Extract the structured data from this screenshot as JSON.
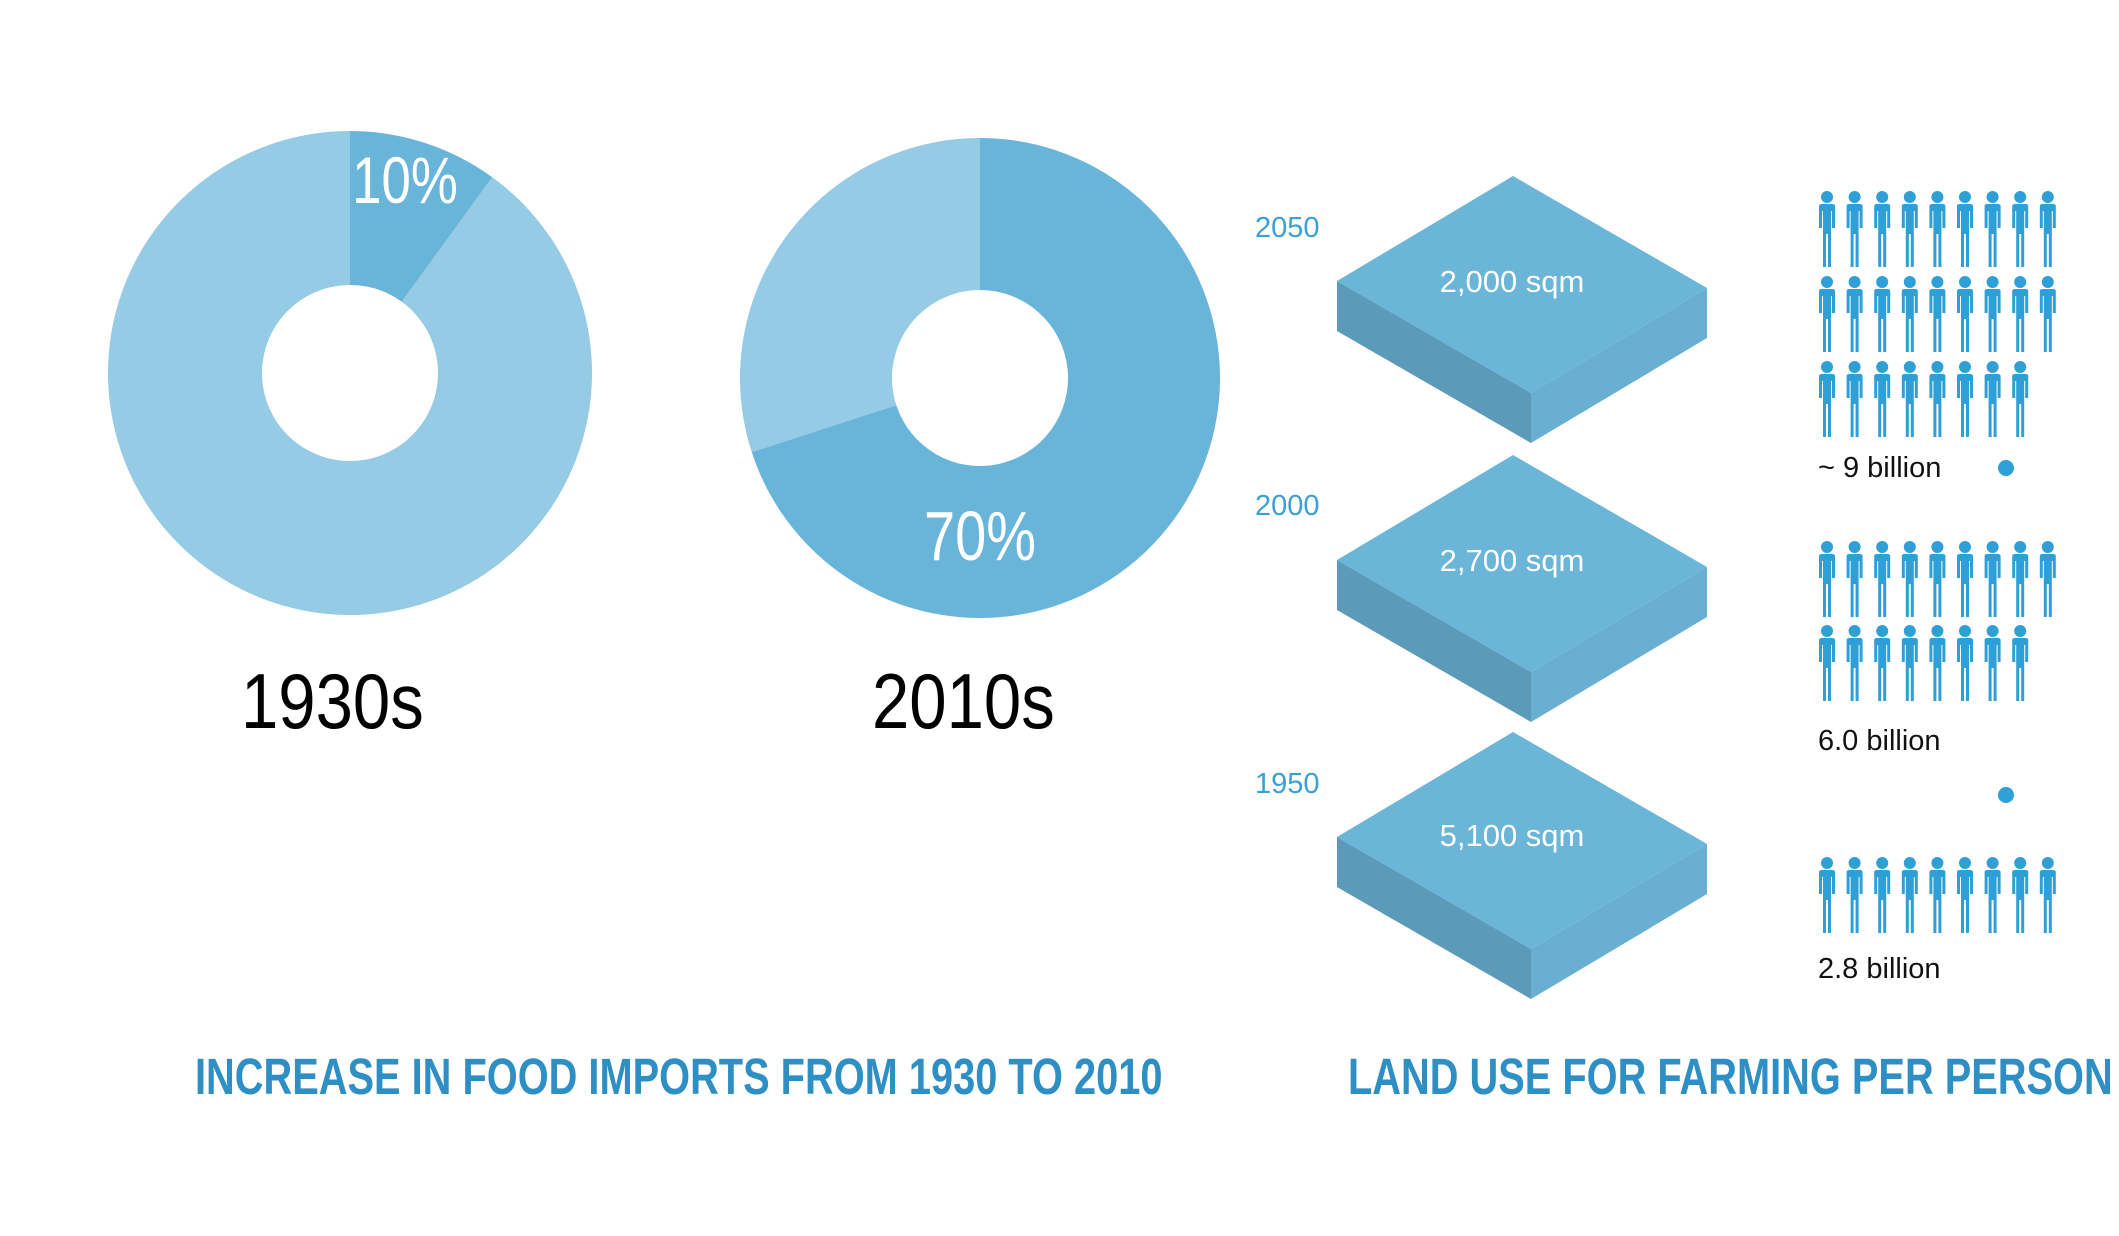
{
  "chart_data": [
    {
      "type": "pie",
      "variant": "donut",
      "title": "INCREASE IN FOOD IMPORTS FROM 1930 TO 2010",
      "charts": [
        {
          "label": "1930s",
          "value_percent": 10,
          "value_label": "10%"
        },
        {
          "label": "2010s",
          "value_percent": 70,
          "value_label": "70%"
        }
      ]
    },
    {
      "type": "bar",
      "variant": "isometric pictograph",
      "title": "LAND USE FOR FARMING PER PERSON",
      "categories": [
        "2050",
        "2000",
        "1950"
      ],
      "values": [
        2000,
        2700,
        5100
      ],
      "value_labels": [
        "2,000 sqm",
        "2,700 sqm",
        "5,100 sqm"
      ],
      "unit": "sqm",
      "population": [
        {
          "year": "2050",
          "label": "~ 9 billion",
          "value_billion": 9
        },
        {
          "year": "2000",
          "label": "6.0 billion",
          "value_billion": 6.0
        },
        {
          "year": "1950",
          "label": "2.8 billion",
          "value_billion": 2.8
        }
      ]
    }
  ],
  "colors": {
    "slice_dark": "#69b5da",
    "slice_light": "#95cbe4",
    "slab_top": "#6ab5d8",
    "slab_left": "#5b9ab8",
    "slab_right": "#68afd2",
    "person": "#2f9fd7",
    "title": "#2e8fc4",
    "year": "#3aa0d6"
  }
}
